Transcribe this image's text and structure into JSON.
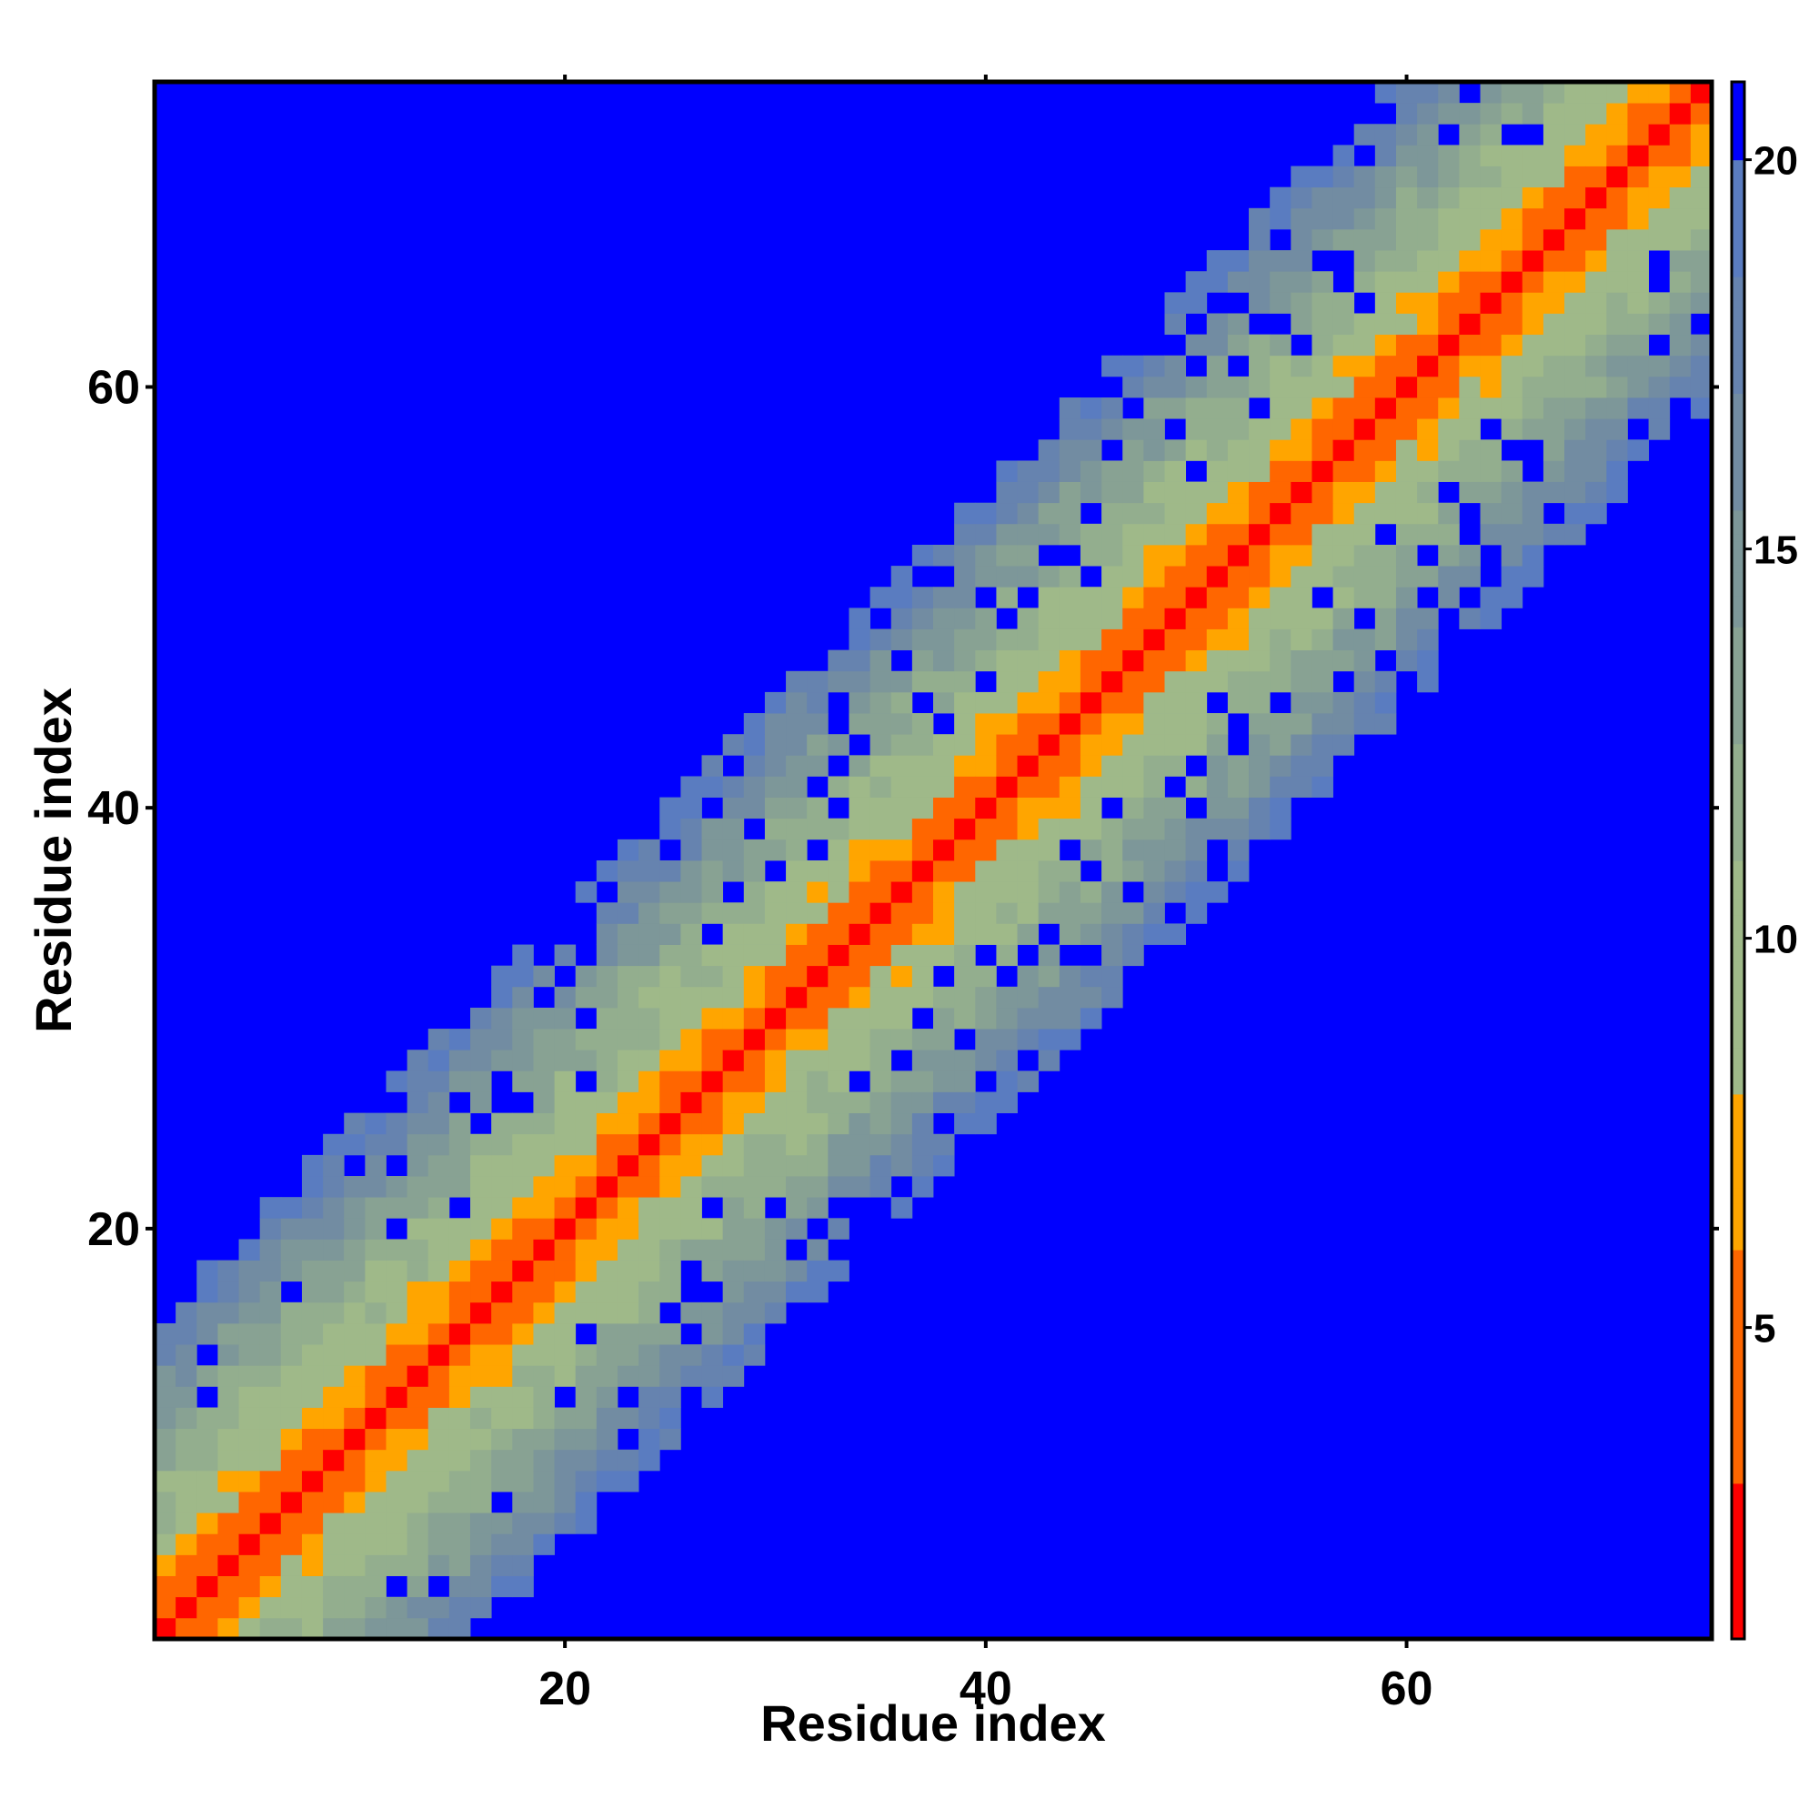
{
  "chart_data": {
    "type": "heatmap",
    "title": "",
    "xlabel": "Residue index",
    "ylabel": "Residue index",
    "n_residues": 74,
    "xlim": [
      0.5,
      74.5
    ],
    "ylim": [
      0.5,
      74.5
    ],
    "x_ticks": [
      20,
      40,
      60
    ],
    "y_ticks": [
      20,
      40,
      60
    ],
    "value_range": [
      1,
      21
    ],
    "colorbar_ticks": [
      5,
      10,
      15,
      20
    ],
    "colormap": [
      {
        "min": 0,
        "max": 3,
        "color": "#ff0000"
      },
      {
        "min": 3,
        "max": 6,
        "color": "#ff6600"
      },
      {
        "min": 6,
        "max": 8,
        "color": "#ffa500"
      },
      {
        "min": 8,
        "max": 11,
        "color": "#9fb989"
      },
      {
        "min": 11,
        "max": 12.5,
        "color": "#93ae8e"
      },
      {
        "min": 12.5,
        "max": 14,
        "color": "#88a293"
      },
      {
        "min": 14,
        "max": 15.5,
        "color": "#7d9799"
      },
      {
        "min": 15.5,
        "max": 17,
        "color": "#728ca2"
      },
      {
        "min": 17,
        "max": 18.5,
        "color": "#6683af"
      },
      {
        "min": 18.5,
        "max": 20,
        "color": "#5a7cc0"
      },
      {
        "min": 20,
        "max": 99,
        "color": "#0000ff"
      }
    ],
    "distance_by_offset": [
      1,
      3,
      5.5,
      7.5,
      9,
      10,
      10.8,
      11.6,
      12.4,
      13.2,
      14.2,
      15.2,
      16.2,
      17.2,
      18.2,
      19.5
    ],
    "cutoff": 20,
    "grid": false,
    "colorbar_position": "right"
  }
}
